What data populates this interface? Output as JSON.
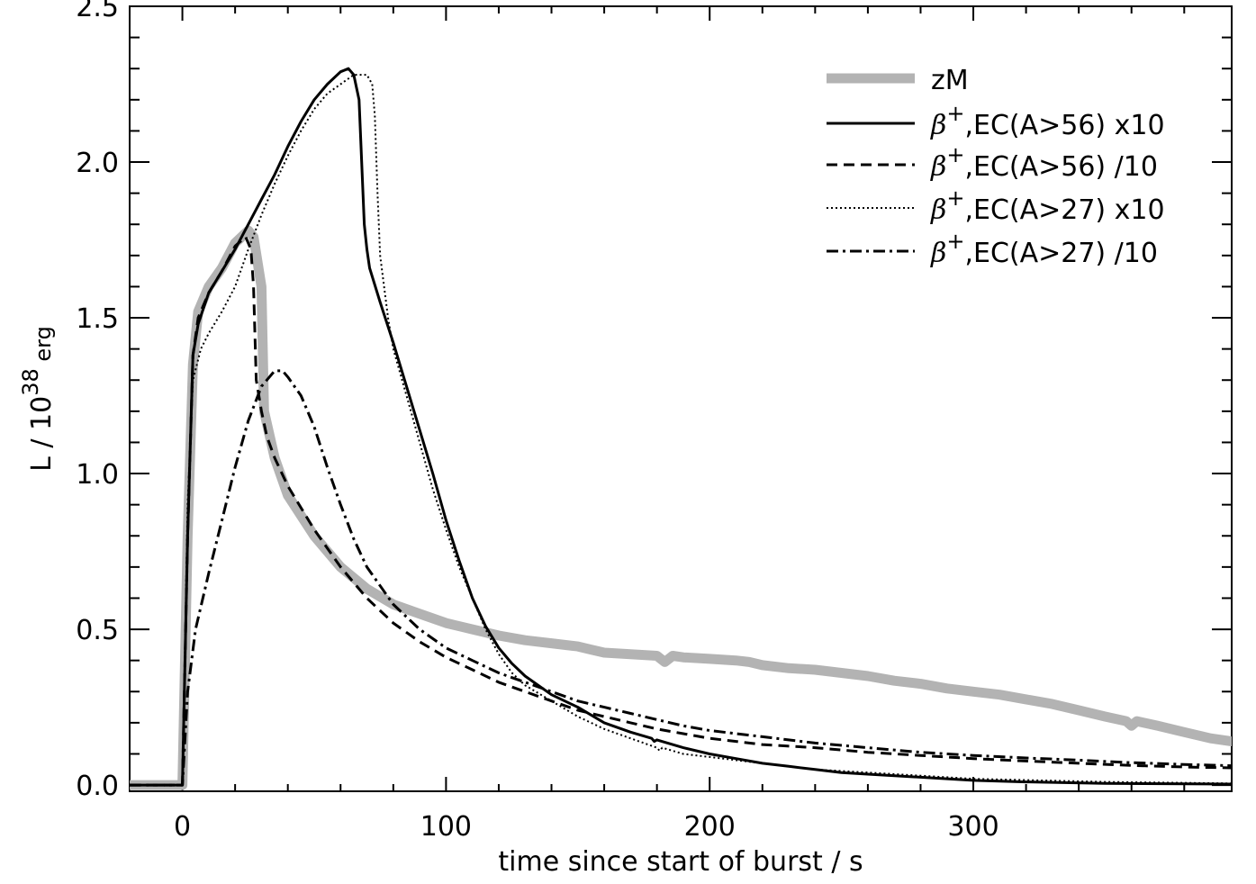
{
  "chart_data": {
    "type": "line",
    "xlabel": "time since start of burst / s",
    "ylabel_main": "L / 10",
    "ylabel_sup": "38",
    "ylabel_tail": " erg",
    "xlim": [
      -20,
      398
    ],
    "ylim": [
      -0.02,
      2.5
    ],
    "xticks": [
      0,
      100,
      200,
      300
    ],
    "xtick_labels": [
      "0",
      "100",
      "200",
      "300"
    ],
    "yticks": [
      0.0,
      0.5,
      1.0,
      1.5,
      2.0,
      2.5
    ],
    "ytick_labels": [
      "0.0",
      "0.5",
      "1.0",
      "1.5",
      "2.0",
      "2.5"
    ],
    "legend_position": "top-right",
    "series": [
      {
        "name": "zM",
        "style": "thick-gray",
        "color": "#b3b3b3",
        "points": [
          [
            -20,
            0
          ],
          [
            0,
            0
          ],
          [
            2,
            0.8
          ],
          [
            4,
            1.35
          ],
          [
            6,
            1.52
          ],
          [
            10,
            1.6
          ],
          [
            15,
            1.66
          ],
          [
            20,
            1.74
          ],
          [
            25,
            1.78
          ],
          [
            27,
            1.76
          ],
          [
            30,
            1.6
          ],
          [
            31,
            1.2
          ],
          [
            35,
            1.05
          ],
          [
            40,
            0.93
          ],
          [
            50,
            0.8
          ],
          [
            60,
            0.7
          ],
          [
            70,
            0.63
          ],
          [
            80,
            0.58
          ],
          [
            90,
            0.55
          ],
          [
            100,
            0.52
          ],
          [
            110,
            0.5
          ],
          [
            120,
            0.48
          ],
          [
            130,
            0.465
          ],
          [
            140,
            0.455
          ],
          [
            150,
            0.445
          ],
          [
            155,
            0.435
          ],
          [
            160,
            0.425
          ],
          [
            170,
            0.42
          ],
          [
            180,
            0.415
          ],
          [
            183,
            0.395
          ],
          [
            186,
            0.415
          ],
          [
            190,
            0.41
          ],
          [
            200,
            0.405
          ],
          [
            210,
            0.4
          ],
          [
            215,
            0.395
          ],
          [
            220,
            0.385
          ],
          [
            230,
            0.375
          ],
          [
            240,
            0.37
          ],
          [
            250,
            0.36
          ],
          [
            260,
            0.35
          ],
          [
            270,
            0.335
          ],
          [
            280,
            0.325
          ],
          [
            290,
            0.31
          ],
          [
            300,
            0.3
          ],
          [
            310,
            0.29
          ],
          [
            320,
            0.275
          ],
          [
            330,
            0.26
          ],
          [
            340,
            0.24
          ],
          [
            350,
            0.22
          ],
          [
            358,
            0.205
          ],
          [
            360,
            0.19
          ],
          [
            362,
            0.205
          ],
          [
            370,
            0.19
          ],
          [
            380,
            0.17
          ],
          [
            390,
            0.15
          ],
          [
            398,
            0.14
          ]
        ]
      },
      {
        "name": "EC(A>56) x10",
        "legend_beta": "β",
        "legend_sup": "+",
        "style": "solid",
        "color": "#000000",
        "points": [
          [
            -20,
            0
          ],
          [
            0,
            0
          ],
          [
            2,
            0.8
          ],
          [
            4,
            1.38
          ],
          [
            6,
            1.48
          ],
          [
            10,
            1.58
          ],
          [
            15,
            1.65
          ],
          [
            20,
            1.72
          ],
          [
            25,
            1.8
          ],
          [
            30,
            1.88
          ],
          [
            35,
            1.96
          ],
          [
            40,
            2.05
          ],
          [
            45,
            2.13
          ],
          [
            50,
            2.2
          ],
          [
            55,
            2.25
          ],
          [
            60,
            2.29
          ],
          [
            63,
            2.3
          ],
          [
            65,
            2.28
          ],
          [
            67,
            2.2
          ],
          [
            68,
            2.0
          ],
          [
            69,
            1.8
          ],
          [
            70,
            1.72
          ],
          [
            71,
            1.66
          ],
          [
            75,
            1.55
          ],
          [
            80,
            1.42
          ],
          [
            85,
            1.28
          ],
          [
            90,
            1.14
          ],
          [
            95,
            1.0
          ],
          [
            100,
            0.85
          ],
          [
            105,
            0.72
          ],
          [
            110,
            0.6
          ],
          [
            115,
            0.51
          ],
          [
            120,
            0.44
          ],
          [
            125,
            0.39
          ],
          [
            130,
            0.35
          ],
          [
            140,
            0.29
          ],
          [
            150,
            0.25
          ],
          [
            160,
            0.2
          ],
          [
            170,
            0.17
          ],
          [
            178,
            0.15
          ],
          [
            179,
            0.14
          ],
          [
            180,
            0.145
          ],
          [
            190,
            0.12
          ],
          [
            200,
            0.1
          ],
          [
            210,
            0.085
          ],
          [
            220,
            0.07
          ],
          [
            230,
            0.06
          ],
          [
            240,
            0.05
          ],
          [
            250,
            0.04
          ],
          [
            260,
            0.035
          ],
          [
            280,
            0.025
          ],
          [
            300,
            0.015
          ],
          [
            320,
            0.01
          ],
          [
            350,
            0.005
          ],
          [
            398,
            0.003
          ]
        ]
      },
      {
        "name": "EC(A>56) /10",
        "legend_beta": "β",
        "legend_sup": "+",
        "style": "dashed",
        "color": "#000000",
        "points": [
          [
            -20,
            0
          ],
          [
            0,
            0
          ],
          [
            2,
            0.8
          ],
          [
            4,
            1.38
          ],
          [
            6,
            1.5
          ],
          [
            10,
            1.58
          ],
          [
            15,
            1.65
          ],
          [
            20,
            1.73
          ],
          [
            24,
            1.76
          ],
          [
            26,
            1.72
          ],
          [
            27,
            1.6
          ],
          [
            28,
            1.3
          ],
          [
            30,
            1.2
          ],
          [
            32,
            1.12
          ],
          [
            35,
            1.05
          ],
          [
            40,
            0.96
          ],
          [
            50,
            0.82
          ],
          [
            60,
            0.7
          ],
          [
            70,
            0.6
          ],
          [
            80,
            0.52
          ],
          [
            90,
            0.46
          ],
          [
            100,
            0.41
          ],
          [
            110,
            0.37
          ],
          [
            120,
            0.33
          ],
          [
            130,
            0.3
          ],
          [
            140,
            0.27
          ],
          [
            150,
            0.24
          ],
          [
            160,
            0.22
          ],
          [
            170,
            0.2
          ],
          [
            180,
            0.18
          ],
          [
            190,
            0.165
          ],
          [
            200,
            0.15
          ],
          [
            220,
            0.13
          ],
          [
            240,
            0.12
          ],
          [
            260,
            0.105
          ],
          [
            280,
            0.095
          ],
          [
            300,
            0.085
          ],
          [
            320,
            0.077
          ],
          [
            340,
            0.07
          ],
          [
            360,
            0.063
          ],
          [
            380,
            0.058
          ],
          [
            398,
            0.055
          ]
        ]
      },
      {
        "name": "EC(A>27) x10",
        "legend_beta": "β",
        "legend_sup": "+",
        "style": "dotted",
        "color": "#000000",
        "points": [
          [
            -20,
            0
          ],
          [
            0,
            0
          ],
          [
            2,
            0.9
          ],
          [
            4,
            1.3
          ],
          [
            7,
            1.4
          ],
          [
            10,
            1.45
          ],
          [
            15,
            1.52
          ],
          [
            20,
            1.6
          ],
          [
            25,
            1.72
          ],
          [
            30,
            1.83
          ],
          [
            35,
            1.93
          ],
          [
            40,
            2.02
          ],
          [
            45,
            2.1
          ],
          [
            50,
            2.17
          ],
          [
            55,
            2.22
          ],
          [
            60,
            2.25
          ],
          [
            65,
            2.28
          ],
          [
            70,
            2.28
          ],
          [
            72,
            2.25
          ],
          [
            73,
            2.15
          ],
          [
            74,
            1.9
          ],
          [
            75,
            1.7
          ],
          [
            78,
            1.5
          ],
          [
            80,
            1.4
          ],
          [
            85,
            1.25
          ],
          [
            90,
            1.1
          ],
          [
            95,
            0.95
          ],
          [
            100,
            0.82
          ],
          [
            105,
            0.7
          ],
          [
            110,
            0.6
          ],
          [
            115,
            0.5
          ],
          [
            120,
            0.42
          ],
          [
            125,
            0.36
          ],
          [
            130,
            0.32
          ],
          [
            140,
            0.27
          ],
          [
            150,
            0.22
          ],
          [
            160,
            0.18
          ],
          [
            170,
            0.15
          ],
          [
            180,
            0.12
          ],
          [
            181,
            0.11
          ],
          [
            182,
            0.12
          ],
          [
            190,
            0.1
          ],
          [
            200,
            0.09
          ],
          [
            220,
            0.07
          ],
          [
            240,
            0.05
          ],
          [
            260,
            0.04
          ],
          [
            280,
            0.03
          ],
          [
            300,
            0.02
          ],
          [
            350,
            0.01
          ],
          [
            398,
            0.005
          ]
        ]
      },
      {
        "name": "EC(A>27) /10",
        "legend_beta": "β",
        "legend_sup": "+",
        "style": "dashdot",
        "color": "#000000",
        "points": [
          [
            -20,
            0
          ],
          [
            0,
            0
          ],
          [
            2,
            0.3
          ],
          [
            5,
            0.5
          ],
          [
            10,
            0.68
          ],
          [
            15,
            0.85
          ],
          [
            20,
            1.02
          ],
          [
            25,
            1.17
          ],
          [
            30,
            1.28
          ],
          [
            35,
            1.33
          ],
          [
            38,
            1.33
          ],
          [
            40,
            1.31
          ],
          [
            45,
            1.25
          ],
          [
            50,
            1.15
          ],
          [
            55,
            1.02
          ],
          [
            60,
            0.9
          ],
          [
            65,
            0.79
          ],
          [
            70,
            0.7
          ],
          [
            80,
            0.58
          ],
          [
            90,
            0.5
          ],
          [
            100,
            0.44
          ],
          [
            110,
            0.4
          ],
          [
            120,
            0.36
          ],
          [
            130,
            0.33
          ],
          [
            140,
            0.3
          ],
          [
            150,
            0.27
          ],
          [
            160,
            0.25
          ],
          [
            170,
            0.23
          ],
          [
            180,
            0.21
          ],
          [
            190,
            0.19
          ],
          [
            200,
            0.175
          ],
          [
            220,
            0.155
          ],
          [
            240,
            0.135
          ],
          [
            260,
            0.12
          ],
          [
            280,
            0.105
          ],
          [
            300,
            0.095
          ],
          [
            320,
            0.087
          ],
          [
            340,
            0.08
          ],
          [
            360,
            0.072
          ],
          [
            380,
            0.066
          ],
          [
            398,
            0.062
          ]
        ]
      }
    ]
  }
}
